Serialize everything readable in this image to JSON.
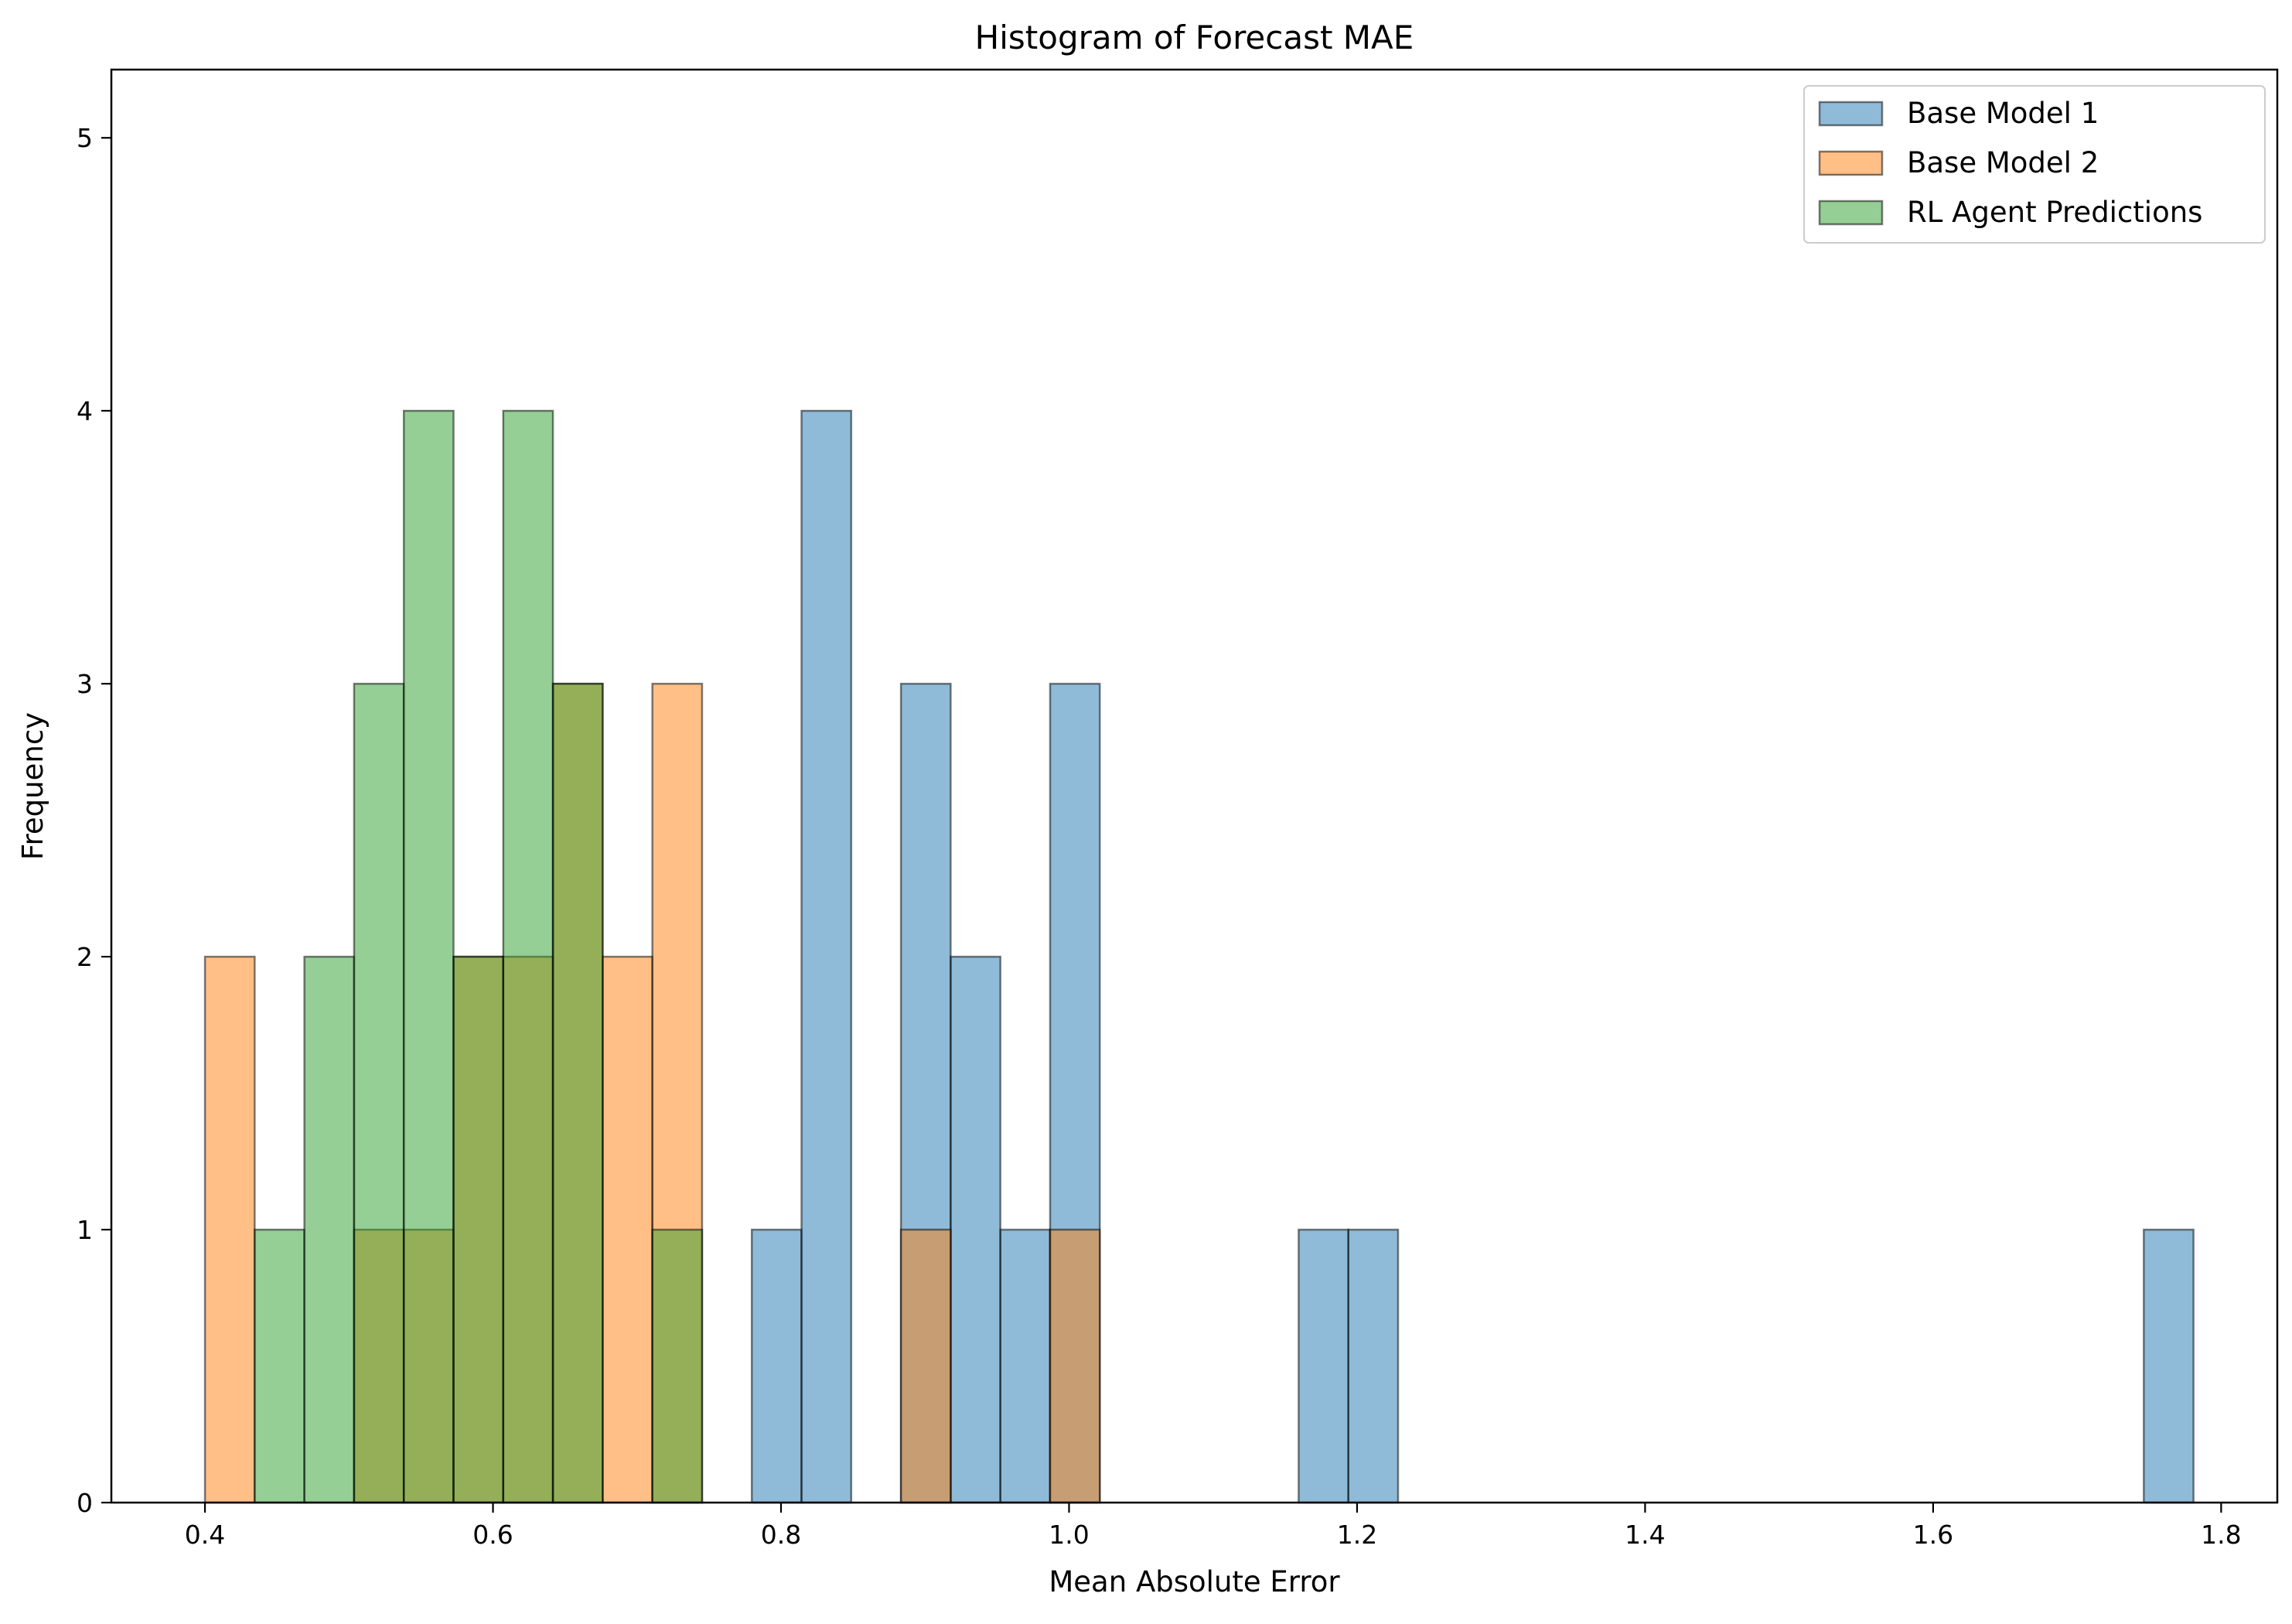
{
  "chart_data": {
    "type": "bar",
    "title": "Histogram of Forecast MAE",
    "xlabel": "Mean Absolute Error",
    "ylabel": "Frequency",
    "xlim": [
      0.335,
      1.839
    ],
    "ylim": [
      0,
      5.25
    ],
    "xticks": [
      0.4,
      0.6,
      0.8,
      1.0,
      1.2,
      1.4,
      1.6,
      1.8
    ],
    "xtick_labels": [
      "0.4",
      "0.6",
      "0.8",
      "1.0",
      "1.2",
      "1.4",
      "1.6",
      "1.8"
    ],
    "yticks": [
      0,
      1,
      2,
      3,
      4,
      5
    ],
    "ytick_labels": [
      "0",
      "1",
      "2",
      "3",
      "4",
      "5"
    ],
    "bins": {
      "start": 0.4,
      "width": 0.03452,
      "count": 40
    },
    "legend_position": "top-right",
    "grid": false,
    "series": [
      {
        "name": "Base Model 1",
        "color": "#1f77b4",
        "counts": [
          0,
          0,
          0,
          0,
          0,
          0,
          0,
          0,
          0,
          0,
          0,
          1,
          4,
          0,
          3,
          2,
          1,
          3,
          0,
          0,
          0,
          0,
          1,
          1,
          0,
          0,
          0,
          0,
          0,
          0,
          0,
          0,
          0,
          0,
          0,
          0,
          0,
          0,
          0,
          1
        ]
      },
      {
        "name": "Base Model 2",
        "color": "#ff7f0e",
        "counts": [
          2,
          0,
          0,
          1,
          1,
          2,
          2,
          3,
          2,
          3,
          0,
          0,
          0,
          0,
          1,
          0,
          0,
          1,
          0,
          0,
          0,
          0,
          0,
          0,
          0,
          0,
          0,
          0,
          0,
          0,
          0,
          0,
          0,
          0,
          0,
          0,
          0,
          0,
          0,
          0
        ]
      },
      {
        "name": "RL Agent Predictions",
        "color": "#2ca02c",
        "counts": [
          0,
          1,
          2,
          3,
          4,
          2,
          4,
          3,
          0,
          1,
          0,
          0,
          0,
          0,
          0,
          0,
          0,
          0,
          0,
          0,
          0,
          0,
          0,
          0,
          0,
          0,
          0,
          0,
          0,
          0,
          0,
          0,
          0,
          0,
          0,
          0,
          0,
          0,
          0,
          0
        ]
      }
    ]
  }
}
